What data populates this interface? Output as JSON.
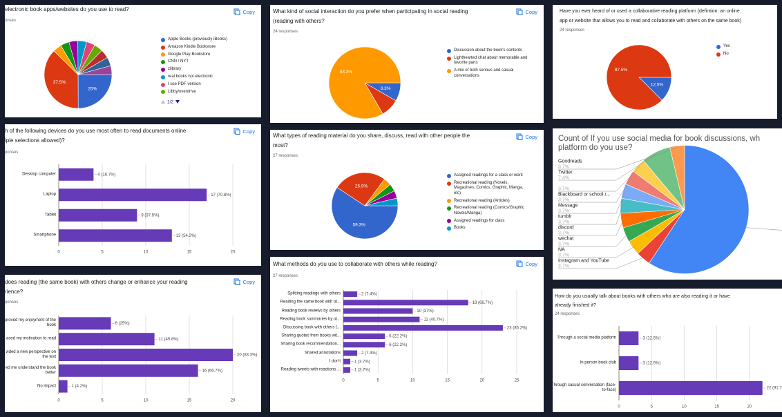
{
  "chart_data": [
    {
      "type": "pie",
      "title": [
        "electronic book apps/websites do you use to read?"
      ],
      "subtitle": "onses",
      "button": "Copy",
      "categories": [
        "Apple Books (previously iBooks)",
        "Amazon Kindle Bookstore",
        "Google Play Bookstore",
        "CNN / NYT",
        "zlibrary",
        "real books not electronic",
        "I use PDF version",
        "Libby/overdrive",
        null,
        null,
        null
      ],
      "values": [
        25,
        37.5,
        4.2,
        4.2,
        4.2,
        4.2,
        4.2,
        4.2,
        4.2,
        4.2,
        4.2
      ],
      "value_labels": [
        "25%",
        "37.5%",
        null,
        null,
        null,
        null,
        null,
        null,
        null,
        null,
        null
      ],
      "colors": [
        "#3366cc",
        "#dc3912",
        "#ff9900",
        "#109618",
        "#990099",
        "#0099c6",
        "#dd4477",
        "#66aa00",
        "#b82e2e",
        "#316395",
        "#994499"
      ],
      "legend": "right",
      "legend_page": "1/2"
    },
    {
      "type": "bar",
      "orientation": "horizontal",
      "title": [
        "h of the following devices do you use most often to read documents online",
        "iple selections allowed)?"
      ],
      "subtitle": "ponses",
      "button": "Copy",
      "categories": [
        "Desktop computer",
        "Laptop",
        "Tablet",
        "Smartphone"
      ],
      "values": [
        4,
        17,
        9,
        13
      ],
      "value_labels": [
        "4 (16.7%)",
        "17 (70.8%)",
        "9 (37.5%)",
        "13 (54.2%)"
      ],
      "color": "#673ab7",
      "xlim": [
        0,
        20
      ],
      "xticks": [
        0,
        5,
        10,
        15,
        20
      ],
      "grid": true
    },
    {
      "type": "bar",
      "orientation": "horizontal",
      "title": [
        "does reading (the same book) with others change or enhance your reading",
        "rience?"
      ],
      "subtitle": "ponses",
      "button": "Copy",
      "categories": [
        "proved my enjoyment of the book",
        "ased my motivation to read",
        "vided a new perspective on the text",
        "ed me understand the book better",
        "No impact"
      ],
      "values": [
        6,
        11,
        20,
        16,
        1
      ],
      "value_labels": [
        "6 (25%)",
        "11 (45.8%)",
        "20 (83.3%)",
        "16 (66.7%)",
        "1 (4.2%)"
      ],
      "color": "#673ab7",
      "xlim": [
        0,
        20
      ],
      "xticks": [
        0,
        5,
        10,
        15,
        20
      ],
      "grid": true
    },
    {
      "type": "pie",
      "title": [
        "What kind of social interaction do you prefer when participating in social reading",
        "(reading with others?"
      ],
      "subtitle": "24 responses",
      "button": "Copy",
      "categories": [
        "Discussion about the book's contents",
        "Lighthearted chat about memorable and favorite parts",
        "A mix of both serious and casual conversations"
      ],
      "values": [
        8.3,
        8.3,
        83.3
      ],
      "value_labels": [
        "8.3%",
        null,
        "83.3%"
      ],
      "colors": [
        "#3366cc",
        "#dc3912",
        "#ff9900"
      ],
      "legend": "right"
    },
    {
      "type": "pie",
      "title": [
        "What types of reading material do you share, discuss, read with other people the",
        "most?"
      ],
      "subtitle": "27 responses",
      "button": "Copy",
      "categories": [
        "Assigned readings for a class or work",
        "Recreational reading (Novels, Magazines, Comics, Graphic, Manga, etc)",
        "Recreational reading (Articles)",
        "Recreational reading (Comics/Graphic Novels/Manga)",
        "Assigned readings for class",
        "Books"
      ],
      "values": [
        59.3,
        25.9,
        3.7,
        3.7,
        3.7,
        3.7
      ],
      "value_labels": [
        "59.3%",
        "25.9%",
        null,
        null,
        null,
        null
      ],
      "colors": [
        "#3366cc",
        "#dc3912",
        "#ff9900",
        "#109618",
        "#990099",
        "#0099c6"
      ],
      "legend": "right"
    },
    {
      "type": "bar",
      "orientation": "horizontal",
      "title": [
        "What methods do you use to collaborate with others while reading?"
      ],
      "subtitle": "27 responses",
      "button": "Copy",
      "categories": [
        "Splitting readings with others",
        "Reading the same book with ot...",
        "Reading book reviews by others",
        "Reading book summaries by ot...",
        "Discussing book with others (...",
        "Sharing quotes from books wit...",
        "Sharing book recommendation...",
        "Shared annotations",
        "I don't",
        "Reading tweets with reactions ..."
      ],
      "values": [
        2,
        18,
        10,
        11,
        23,
        6,
        6,
        2,
        1,
        1
      ],
      "value_labels": [
        "2 (7.4%)",
        "18 (66.7%)",
        "10 (37%)",
        "11 (40.7%)",
        "23 (85.2%)",
        "6 (22.2%)",
        "6 (22.2%)",
        "2 (7.4%)",
        "1 (3.7%)",
        "1 (3.7%)"
      ],
      "color": "#673ab7",
      "xlim": [
        0,
        25
      ],
      "xticks": [
        0,
        5,
        10,
        15,
        20,
        25
      ],
      "grid": true
    },
    {
      "type": "pie",
      "title": [
        "Have you ever heard of or used a collaborative reading platform (defintion: an online",
        "app or website that allows you to read and collaborate with others on the same book)"
      ],
      "subtitle": "24 responses",
      "categories": [
        "Yes",
        "No"
      ],
      "values": [
        12.5,
        87.5
      ],
      "value_labels": [
        "12.5%",
        "87.5%"
      ],
      "colors": [
        "#3366cc",
        "#dc3912"
      ],
      "legend": "right"
    },
    {
      "type": "pie",
      "title": [
        "Count of If you use social media for book discussions, wh",
        "platform do you use?"
      ],
      "categories": [
        null,
        "Instagram and YouTube",
        "NA",
        "wechat",
        "discord",
        "tumblr",
        "Message",
        "Blackboard or school r...",
        null,
        "Twitter",
        "Goodreads"
      ],
      "values": [
        59.3,
        3.7,
        3.7,
        3.7,
        3.7,
        3.7,
        3.7,
        3.7,
        3.7,
        7.4,
        3.7
      ],
      "value_labels": [
        null,
        "3.7%",
        "3.7%",
        "3.7%",
        "3.7%",
        "3.7%",
        "3.7%",
        "3.7%",
        "3.7%",
        "7.4%",
        "3.7%"
      ],
      "colors": [
        "#4285f4",
        "#ea4335",
        "#fbbc04",
        "#34a853",
        "#ff6d01",
        "#46bdc6",
        "#7baaf7",
        "#f07b72",
        "#fcd04f",
        "#71c287",
        "#ff994d"
      ],
      "label_style": "callout"
    },
    {
      "type": "bar",
      "orientation": "horizontal",
      "title": [
        "How do you usually talk about books with others who are also reading it or have",
        "already finished it?"
      ],
      "subtitle": "24 responses",
      "categories": [
        "Through a social media platform",
        "In person book club",
        "Through casual conversation (face-to-face)"
      ],
      "values": [
        3,
        3,
        22
      ],
      "value_labels": [
        "3 (12.5%)",
        "3 (12.5%)",
        "22 (91.7%)"
      ],
      "color": "#673ab7",
      "xlim": [
        0,
        25
      ],
      "xticks": [
        0,
        5,
        10,
        15,
        20
      ],
      "grid": true
    }
  ]
}
